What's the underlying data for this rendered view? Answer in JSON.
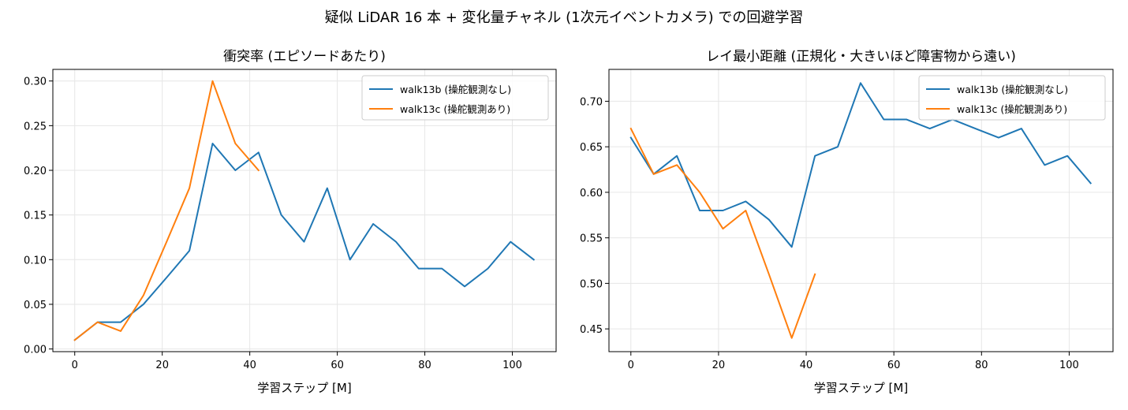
{
  "figure_title": "疑似 LiDAR 16 本 + 変化量チャネル (1次元イベントカメラ) での回避学習",
  "colors": {
    "walk13b": "#1f77b4",
    "walk13c": "#ff7f0e",
    "grid": "#e6e6e6"
  },
  "chart_data": [
    {
      "type": "line",
      "title": "衝突率 (エピソードあたり)",
      "xlabel": "学習ステップ [M]",
      "ylabel": "",
      "xlim": [
        -5,
        110
      ],
      "ylim": [
        -0.003,
        0.313
      ],
      "xticks": [
        0,
        20,
        40,
        60,
        80,
        100
      ],
      "yticks": [
        0.0,
        0.05,
        0.1,
        0.15,
        0.2,
        0.25,
        0.3
      ],
      "ytick_labels": [
        "0.00",
        "0.05",
        "0.10",
        "0.15",
        "0.20",
        "0.25",
        "0.30"
      ],
      "grid": true,
      "legend_position": "top-right",
      "series": [
        {
          "name": "walk13b (操舵観測なし)",
          "color": "#1f77b4",
          "x": [
            0,
            5.2,
            10.5,
            15.7,
            21,
            26.2,
            31.5,
            36.7,
            42,
            47.2,
            52.4,
            57.7,
            62.9,
            68.2,
            73.4,
            78.6,
            83.9,
            89.1,
            94.4,
            99.6,
            104.9
          ],
          "y": [
            0.01,
            0.03,
            0.03,
            0.05,
            0.08,
            0.11,
            0.23,
            0.2,
            0.22,
            0.15,
            0.12,
            0.18,
            0.1,
            0.14,
            0.12,
            0.09,
            0.09,
            0.07,
            0.09,
            0.12,
            0.1
          ]
        },
        {
          "name": "walk13c (操舵観測あり)",
          "color": "#ff7f0e",
          "x": [
            0,
            5.2,
            10.5,
            15.7,
            21,
            26.2,
            31.5,
            36.7,
            42
          ],
          "y": [
            0.01,
            0.03,
            0.02,
            0.06,
            0.12,
            0.18,
            0.3,
            0.23,
            0.2
          ]
        }
      ]
    },
    {
      "type": "line",
      "title": "レイ最小距離 (正規化・大きいほど障害物から遠い)",
      "xlabel": "学習ステップ [M]",
      "ylabel": "",
      "xlim": [
        -5,
        110
      ],
      "ylim": [
        0.425,
        0.735
      ],
      "xticks": [
        0,
        20,
        40,
        60,
        80,
        100
      ],
      "yticks": [
        0.45,
        0.5,
        0.55,
        0.6,
        0.65,
        0.7
      ],
      "ytick_labels": [
        "0.45",
        "0.50",
        "0.55",
        "0.60",
        "0.65",
        "0.70"
      ],
      "grid": true,
      "legend_position": "top-right",
      "series": [
        {
          "name": "walk13b (操舵観測なし)",
          "color": "#1f77b4",
          "x": [
            0,
            5.2,
            10.5,
            15.7,
            21,
            26.2,
            31.5,
            36.7,
            42,
            47.2,
            52.4,
            57.7,
            62.9,
            68.2,
            73.4,
            78.6,
            83.9,
            89.1,
            94.4,
            99.6,
            104.9
          ],
          "y": [
            0.66,
            0.62,
            0.64,
            0.58,
            0.58,
            0.59,
            0.57,
            0.54,
            0.64,
            0.65,
            0.72,
            0.68,
            0.68,
            0.67,
            0.68,
            0.67,
            0.66,
            0.67,
            0.63,
            0.64,
            0.61
          ]
        },
        {
          "name": "walk13c (操舵観測あり)",
          "color": "#ff7f0e",
          "x": [
            0,
            5.2,
            10.5,
            15.7,
            21,
            26.2,
            31.5,
            36.7,
            42
          ],
          "y": [
            0.67,
            0.62,
            0.63,
            0.6,
            0.56,
            0.58,
            0.51,
            0.44,
            0.51
          ]
        }
      ]
    }
  ]
}
